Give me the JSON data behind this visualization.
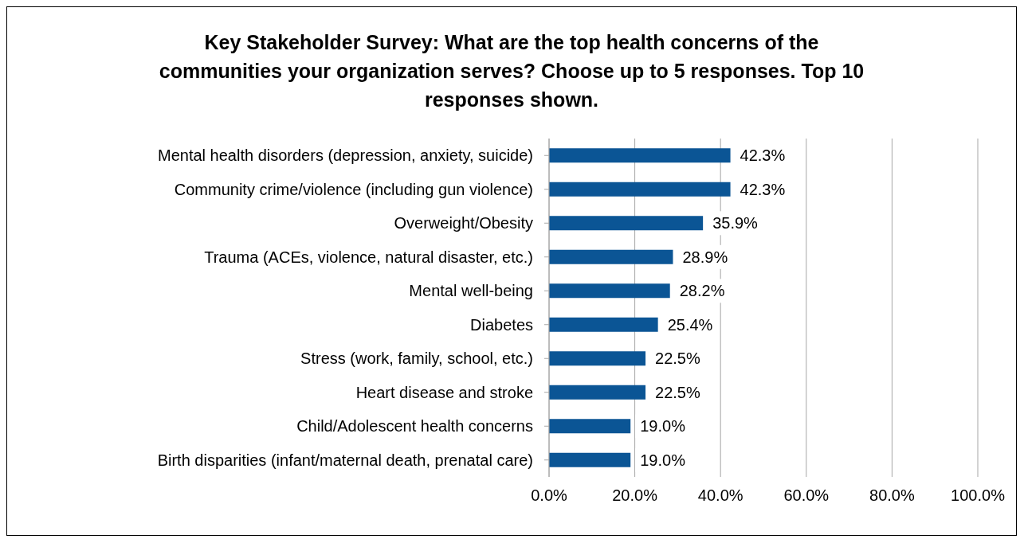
{
  "chart_data": {
    "type": "bar",
    "orientation": "horizontal",
    "title": "Key Stakeholder Survey: What are the top health concerns of the communities your organization serves? Choose up to 5 responses. Top 10 responses shown.",
    "categories": [
      "Mental health disorders (depression, anxiety, suicide)",
      "Community crime/violence (including gun violence)",
      "Overweight/Obesity",
      "Trauma (ACEs, violence, natural disaster, etc.)",
      "Mental well-being",
      "Diabetes",
      "Stress (work, family, school, etc.)",
      "Heart disease and stroke",
      "Child/Adolescent health concerns",
      "Birth disparities (infant/maternal death, prenatal care)"
    ],
    "values": [
      42.3,
      42.3,
      35.9,
      28.9,
      28.2,
      25.4,
      22.5,
      22.5,
      19.0,
      19.0
    ],
    "value_labels": [
      "42.3%",
      "42.3%",
      "35.9%",
      "28.9%",
      "28.2%",
      "25.4%",
      "22.5%",
      "22.5%",
      "19.0%",
      "19.0%"
    ],
    "color": "#0b5595",
    "xlim": [
      0,
      100
    ],
    "xticks": [
      {
        "value": 0,
        "label": "0.0%"
      },
      {
        "value": 20,
        "label": "20.0%"
      },
      {
        "value": 40,
        "label": "40.0%"
      },
      {
        "value": 60,
        "label": "60.0%"
      },
      {
        "value": 80,
        "label": "80.0%"
      },
      {
        "value": 100,
        "label": "100.0%"
      }
    ],
    "grid": "x",
    "legend": false
  }
}
